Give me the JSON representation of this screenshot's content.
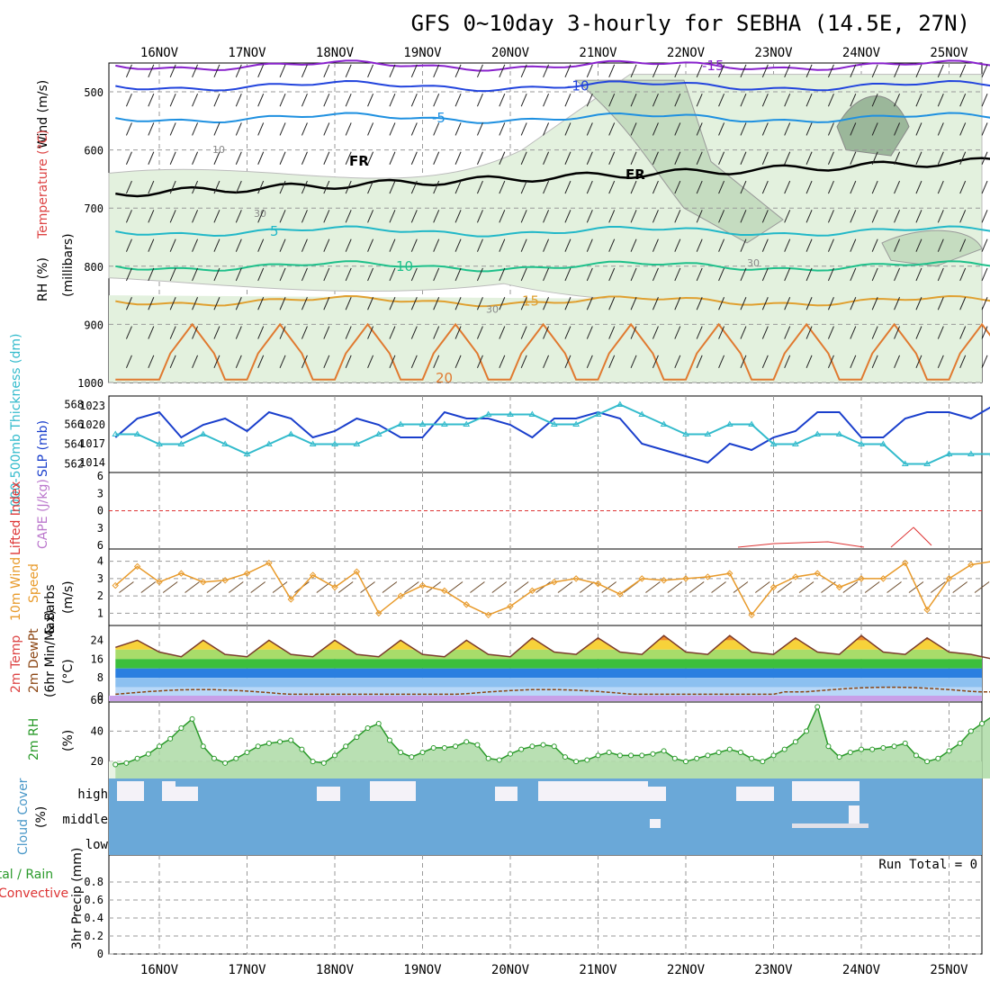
{
  "title": "GFS 0~10day 3-hourly for SEBHA (14.5E, 27N)",
  "date_labels": [
    "16NOV",
    "17NOV",
    "18NOV",
    "19NOV",
    "20NOV",
    "21NOV",
    "22NOV",
    "23NOV",
    "24NOV",
    "25NOV"
  ],
  "colors": {
    "sounding_rh_fill": "#e3f1de",
    "sounding_rh_mid": "#c5dcc0",
    "sounding_rh_dark": "#9bb79a",
    "slp": "#1a3fcc",
    "thickness": "#33bbcc",
    "lifted_index": "#dd3333",
    "wind10m": "#e89a2a",
    "rh2m": "#2a9a2a",
    "cloud": "#6aa8d8",
    "temp_band_hot": "#f08a2a",
    "temp_band_warm": "#f7d23a",
    "temp_band_mild": "#a8dc6a",
    "temp_band_green": "#3cbf3c",
    "temp_band_blue": "#2a7fe0",
    "temp_band_lightblue": "#8cc0f0",
    "temp_band_purple": "#c8a0e8"
  },
  "panels": {
    "sounding": {
      "y_label_wind": "Wind (m/s)",
      "y_label_temp": "Temperature (°C)",
      "y_label_rh": "RH (%)",
      "y_label_unit": "(millibars)",
      "y_ticks": [
        "500",
        "600",
        "700",
        "800",
        "900",
        "1000"
      ],
      "freezing_label": "FR",
      "temperature_contours": [
        {
          "label": "-15",
          "value": -15,
          "color": "#8822cc"
        },
        {
          "label": "-10",
          "value": -10,
          "color": "#2244dd"
        },
        {
          "label": "-5",
          "value": -5,
          "color": "#1e90e0"
        },
        {
          "label": "5",
          "value": 5,
          "color": "#22b8c8"
        },
        {
          "label": "10",
          "value": 10,
          "color": "#1ec08a"
        },
        {
          "label": "15",
          "value": 15,
          "color": "#e0a030"
        },
        {
          "label": "20",
          "value": 20,
          "color": "#e07a30"
        }
      ],
      "rh_contour_labels": [
        "10",
        "30",
        "30",
        "30"
      ]
    },
    "pressure": {
      "y_label_thickness": "1000-500mb Thickness (dm)",
      "y_label_slp": "SLP (mb)",
      "thickness_ticks": [
        "568",
        "566",
        "564",
        "562"
      ],
      "slp_ticks": [
        "1023",
        "1020",
        "1017",
        "1014"
      ]
    },
    "stability": {
      "y_label_li": "Lifted Index",
      "y_label_cape": "CAPE (J/kg)",
      "y_ticks": [
        "6",
        "3",
        "0",
        "3",
        "6"
      ]
    },
    "wind10m": {
      "y_label_main": "10m Wind",
      "y_label_speed": "Speed",
      "y_label_barbs": "& Barbs",
      "y_label_unit": "(m/s)",
      "y_ticks": [
        "4",
        "3",
        "2",
        "1"
      ]
    },
    "temp2m": {
      "y_label_temp": "2m Temp",
      "y_label_dew": "2m DewPt",
      "y_label_minmax": "(6hr Min/Max)",
      "y_label_unit": "(°C)",
      "y_ticks": [
        "24",
        "16",
        "8",
        "0",
        "60"
      ]
    },
    "rh2m": {
      "y_label": "2m RH",
      "y_label_unit": "(%)",
      "y_ticks": [
        "40",
        "20"
      ]
    },
    "cloud": {
      "y_label": "Cloud Cover",
      "y_label_unit": "(%)",
      "levels": [
        "high",
        "middle",
        "low"
      ]
    },
    "precip": {
      "y_label_total": "Total / Rain",
      "y_label_conv": "Convective",
      "y_label_main": "3hr Precip (mm)",
      "y_ticks": [
        "0.8",
        "0.6",
        "0.4",
        "0.2",
        "0"
      ],
      "run_total": "Run Total = 0"
    }
  },
  "chart_data": [
    {
      "type": "line",
      "panel": "sea level pressure & 1000-500mb thickness",
      "x_unit": "3-hour steps from 15NOV 12Z",
      "series": [
        {
          "name": "SLP (mb)",
          "x": [
            0,
            2,
            4,
            6,
            8,
            10,
            12,
            14,
            16,
            18,
            20,
            22,
            24,
            26,
            28,
            30,
            32,
            34,
            36,
            38,
            40,
            42,
            44,
            46,
            48,
            50,
            52,
            54,
            56,
            58,
            60,
            62,
            64,
            66,
            68,
            70,
            72,
            74,
            76,
            78,
            80
          ],
          "values": [
            1018,
            1021,
            1022,
            1018,
            1020,
            1021,
            1019,
            1022,
            1021,
            1018,
            1019,
            1021,
            1020,
            1018,
            1018,
            1022,
            1021,
            1021,
            1020,
            1018,
            1021,
            1021,
            1022,
            1021,
            1017,
            1016,
            1015,
            1014,
            1017,
            1016,
            1018,
            1019,
            1022,
            1022,
            1018,
            1018,
            1021,
            1022,
            1022,
            1021,
            1023
          ],
          "ylim": [
            1013,
            1024
          ]
        },
        {
          "name": "1000-500mb Thickness (dm)",
          "x": [
            0,
            2,
            4,
            6,
            8,
            10,
            12,
            14,
            16,
            18,
            20,
            22,
            24,
            26,
            28,
            30,
            32,
            34,
            36,
            38,
            40,
            42,
            44,
            46,
            48,
            50,
            52,
            54,
            56,
            58,
            60,
            62,
            64,
            66,
            68,
            70,
            72,
            74,
            76,
            78,
            80
          ],
          "values": [
            565,
            565,
            564,
            564,
            565,
            564,
            563,
            564,
            565,
            564,
            564,
            564,
            565,
            566,
            566,
            566,
            566,
            567,
            567,
            567,
            566,
            566,
            567,
            568,
            567,
            566,
            565,
            565,
            566,
            566,
            564,
            564,
            565,
            565,
            564,
            564,
            562,
            562,
            563,
            563,
            563
          ],
          "ylim": [
            561.5,
            568.5
          ]
        }
      ]
    },
    {
      "type": "line",
      "panel": "10m wind speed",
      "x": [
        0,
        2,
        4,
        6,
        8,
        10,
        12,
        14,
        16,
        18,
        20,
        22,
        24,
        26,
        28,
        30,
        32,
        34,
        36,
        38,
        40,
        42,
        44,
        46,
        48,
        50,
        52,
        54,
        56,
        58,
        60,
        62,
        64,
        66,
        68,
        70,
        72,
        74,
        76,
        78,
        80
      ],
      "values": [
        2.6,
        3.7,
        2.8,
        3.3,
        2.8,
        2.9,
        3.3,
        3.9,
        1.8,
        3.2,
        2.5,
        3.4,
        1.0,
        2.0,
        2.6,
        2.3,
        1.5,
        0.9,
        1.4,
        2.3,
        2.8,
        3.0,
        2.7,
        2.1,
        3.0,
        2.9,
        3.0,
        3.1,
        3.3,
        0.9,
        2.5,
        3.1,
        3.3,
        2.5,
        3.0,
        3.0,
        3.9,
        1.2,
        3.0,
        3.8,
        4.0
      ],
      "ylim": [
        0.5,
        4.5
      ],
      "ylabel": "(m/s)"
    },
    {
      "type": "area",
      "panel": "2m temperature",
      "x": [
        0,
        2,
        4,
        6,
        8,
        10,
        12,
        14,
        16,
        18,
        20,
        22,
        24,
        26,
        28,
        30,
        32,
        34,
        36,
        38,
        40,
        42,
        44,
        46,
        48,
        50,
        52,
        54,
        56,
        58,
        60,
        62,
        64,
        66,
        68,
        70,
        72,
        74,
        76,
        78,
        80
      ],
      "values": [
        21,
        24,
        19,
        17,
        24,
        18,
        17,
        24,
        18,
        17,
        24,
        18,
        17,
        24,
        18,
        17,
        24,
        18,
        17,
        25,
        19,
        18,
        25,
        19,
        18,
        26,
        19,
        18,
        26,
        19,
        18,
        25,
        19,
        18,
        26,
        19,
        18,
        25,
        19,
        18,
        16
      ],
      "ylim": [
        0,
        28
      ],
      "ylabel": "(°C)"
    },
    {
      "type": "area",
      "panel": "2m relative humidity",
      "x": [
        0,
        1,
        2,
        3,
        4,
        5,
        6,
        7,
        8,
        9,
        10,
        11,
        12,
        13,
        14,
        15,
        16,
        17,
        18,
        19,
        20,
        21,
        22,
        23,
        24,
        25,
        26,
        27,
        28,
        29,
        30,
        31,
        32,
        33,
        34,
        35,
        36,
        37,
        38,
        39,
        40,
        41,
        42,
        43,
        44,
        45,
        46,
        47,
        48,
        49,
        50,
        51,
        52,
        53,
        54,
        55,
        56,
        57,
        58,
        59,
        60,
        61,
        62,
        63,
        64,
        65,
        66,
        67,
        68,
        69,
        70,
        71,
        72,
        73,
        74,
        75,
        76,
        77,
        78,
        79,
        80
      ],
      "values": [
        18,
        19,
        22,
        25,
        30,
        35,
        42,
        48,
        30,
        22,
        19,
        22,
        26,
        30,
        32,
        33,
        34,
        28,
        20,
        19,
        24,
        30,
        36,
        42,
        45,
        34,
        26,
        23,
        26,
        29,
        29,
        30,
        33,
        31,
        22,
        21,
        25,
        28,
        30,
        31,
        30,
        23,
        20,
        21,
        24,
        26,
        24,
        24,
        24,
        25,
        27,
        22,
        20,
        22,
        24,
        26,
        28,
        26,
        22,
        20,
        24,
        28,
        33,
        40,
        56,
        30,
        23,
        26,
        28,
        28,
        29,
        30,
        32,
        24,
        20,
        22,
        27,
        32,
        40,
        45,
        50
      ],
      "ylim": [
        10,
        58
      ],
      "ylabel": "(%)"
    },
    {
      "type": "bar",
      "panel": "3hr precipitation",
      "x": [
        0,
        10,
        20,
        30,
        40,
        50,
        60,
        70,
        80
      ],
      "values": [
        0,
        0,
        0,
        0,
        0,
        0,
        0,
        0,
        0
      ],
      "ylim": [
        0,
        1
      ],
      "ylabel": "3hr Precip (mm)"
    }
  ]
}
